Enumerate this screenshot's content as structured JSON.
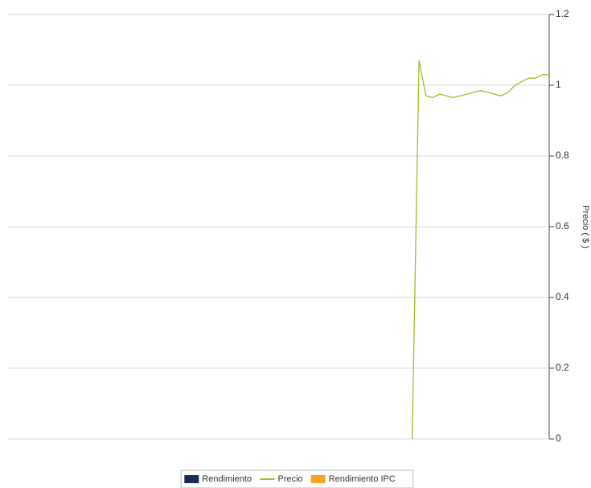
{
  "chart_data": {
    "type": "line",
    "y_axis_label": "Precio ( $ )",
    "categories": [
      null,
      null,
      null,
      null,
      null,
      null,
      null,
      null,
      null,
      null,
      null,
      null,
      null,
      null,
      null,
      null,
      null,
      null,
      null,
      null,
      null,
      null,
      null,
      null,
      null,
      null,
      null,
      null,
      null,
      null,
      null,
      null,
      null,
      null,
      null,
      null,
      null,
      null,
      null,
      null,
      null,
      null,
      null,
      null,
      null,
      null,
      null,
      null,
      null,
      null,
      null,
      null,
      null,
      null,
      null,
      null,
      null,
      null,
      null,
      null,
      null,
      null,
      null,
      null,
      null,
      null,
      null,
      null,
      null,
      null,
      null,
      null,
      null,
      null,
      null,
      null,
      null,
      null,
      null,
      null
    ],
    "series": [
      {
        "name": "Rendimiento",
        "color": "#1c2a4e",
        "kind": "bar",
        "values": [
          null,
          null,
          null,
          null,
          null,
          null,
          null,
          null,
          null,
          null,
          null,
          null,
          null,
          null,
          null,
          null,
          null,
          null,
          null,
          null,
          null,
          null,
          null,
          null,
          null,
          null,
          null,
          null,
          null,
          null,
          null,
          null,
          null,
          null,
          null,
          null,
          null,
          null,
          null,
          null,
          null,
          null,
          null,
          null,
          null,
          null,
          null,
          null,
          null,
          null,
          null,
          null,
          null,
          null,
          null,
          null,
          null,
          null,
          null,
          null,
          null,
          null,
          null,
          null,
          null,
          null,
          null,
          null,
          null,
          null,
          null,
          null,
          null,
          null,
          null,
          null,
          null,
          null,
          null,
          null
        ]
      },
      {
        "name": "Precio",
        "color": "#a9b92a",
        "kind": "line",
        "values": [
          null,
          null,
          null,
          null,
          null,
          null,
          null,
          null,
          null,
          null,
          null,
          null,
          null,
          null,
          null,
          null,
          null,
          null,
          null,
          null,
          null,
          null,
          null,
          null,
          null,
          null,
          null,
          null,
          null,
          null,
          null,
          null,
          null,
          null,
          null,
          null,
          null,
          null,
          null,
          null,
          null,
          null,
          null,
          null,
          null,
          null,
          null,
          null,
          null,
          null,
          null,
          null,
          null,
          null,
          null,
          null,
          null,
          null,
          null,
          0,
          1.07,
          0.97,
          0.965,
          0.975,
          0.97,
          0.965,
          0.97,
          0.975,
          0.98,
          0.985,
          0.98,
          0.975,
          0.97,
          0.98,
          1.0,
          1.01,
          1.02,
          1.02,
          1.03,
          1.03
        ]
      },
      {
        "name": "Rendimiento IPC",
        "color": "#f5a524",
        "kind": "bar",
        "values": [
          null,
          null,
          null,
          null,
          null,
          null,
          null,
          null,
          null,
          null,
          null,
          null,
          null,
          null,
          null,
          null,
          null,
          null,
          null,
          null,
          null,
          null,
          null,
          null,
          null,
          null,
          null,
          null,
          null,
          null,
          null,
          null,
          null,
          null,
          null,
          null,
          null,
          null,
          null,
          null,
          null,
          null,
          null,
          null,
          null,
          null,
          null,
          null,
          null,
          null,
          null,
          null,
          null,
          null,
          null,
          null,
          null,
          null,
          null,
          null,
          null,
          null,
          null,
          null,
          null,
          null,
          null,
          null,
          null,
          null,
          null,
          null,
          null,
          null,
          null,
          null,
          null,
          null,
          null,
          null
        ]
      }
    ],
    "ylim": [
      0,
      1.2
    ],
    "yticks": [
      0,
      0.2,
      0.4,
      0.6,
      0.8,
      1,
      1.2
    ],
    "grid": true,
    "y_axis_side": "right",
    "legend": "bottom"
  }
}
